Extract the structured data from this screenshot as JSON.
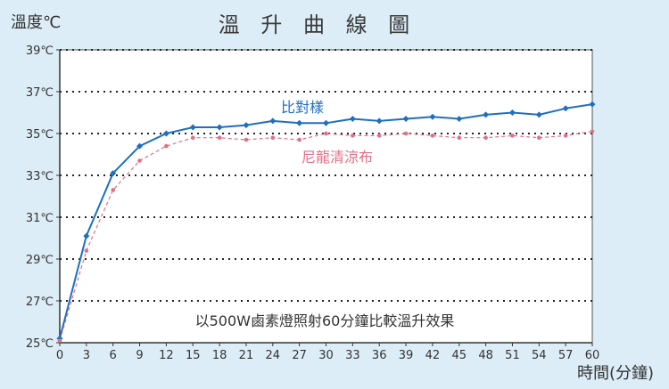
{
  "chart_data": {
    "type": "line",
    "title": "溫 升 曲 線 圖",
    "ylabel": "溫度℃",
    "xlabel": "時間(分鐘)",
    "annotation": "以500W鹵素燈照射60分鐘比較溫升效果",
    "x": [
      0,
      3,
      6,
      9,
      12,
      15,
      18,
      21,
      24,
      27,
      30,
      33,
      36,
      39,
      42,
      45,
      48,
      51,
      54,
      57,
      60
    ],
    "xlim": [
      0,
      60
    ],
    "ylim": [
      25,
      39
    ],
    "x_ticks": [
      "0",
      "3",
      "6",
      "9",
      "12",
      "15",
      "18",
      "21",
      "24",
      "27",
      "30",
      "33",
      "36",
      "39",
      "42",
      "45",
      "48",
      "51",
      "54",
      "57",
      "60"
    ],
    "y_ticks": [
      {
        "v": 25,
        "label": "25℃"
      },
      {
        "v": 27,
        "label": "27℃"
      },
      {
        "v": 29,
        "label": "29℃"
      },
      {
        "v": 31,
        "label": "31℃"
      },
      {
        "v": 33,
        "label": "33℃"
      },
      {
        "v": 35,
        "label": "35℃"
      },
      {
        "v": 37,
        "label": "37℃"
      },
      {
        "v": 39,
        "label": "39℃"
      }
    ],
    "grid": "horizontal dotted",
    "series": [
      {
        "name": "比對樣",
        "color": "#1e6fc0",
        "marker": "diamond",
        "values": [
          25.2,
          30.1,
          33.1,
          34.4,
          35.0,
          35.3,
          35.3,
          35.4,
          35.6,
          35.5,
          35.5,
          35.7,
          35.6,
          35.7,
          35.8,
          35.7,
          35.9,
          36.0,
          35.9,
          36.2,
          36.4
        ]
      },
      {
        "name": "尼龍清涼布",
        "color": "#e07088",
        "marker": "dot",
        "values": [
          25.1,
          29.4,
          32.3,
          33.7,
          34.4,
          34.8,
          34.8,
          34.7,
          34.8,
          34.7,
          35.0,
          34.9,
          34.9,
          35.0,
          34.9,
          34.8,
          34.8,
          34.9,
          34.8,
          34.9,
          35.1
        ]
      }
    ],
    "colors": {
      "plot_bg": "#ffffff",
      "page_bg": "#dcedf7",
      "axis": "#333333",
      "grid": "#222222"
    }
  }
}
